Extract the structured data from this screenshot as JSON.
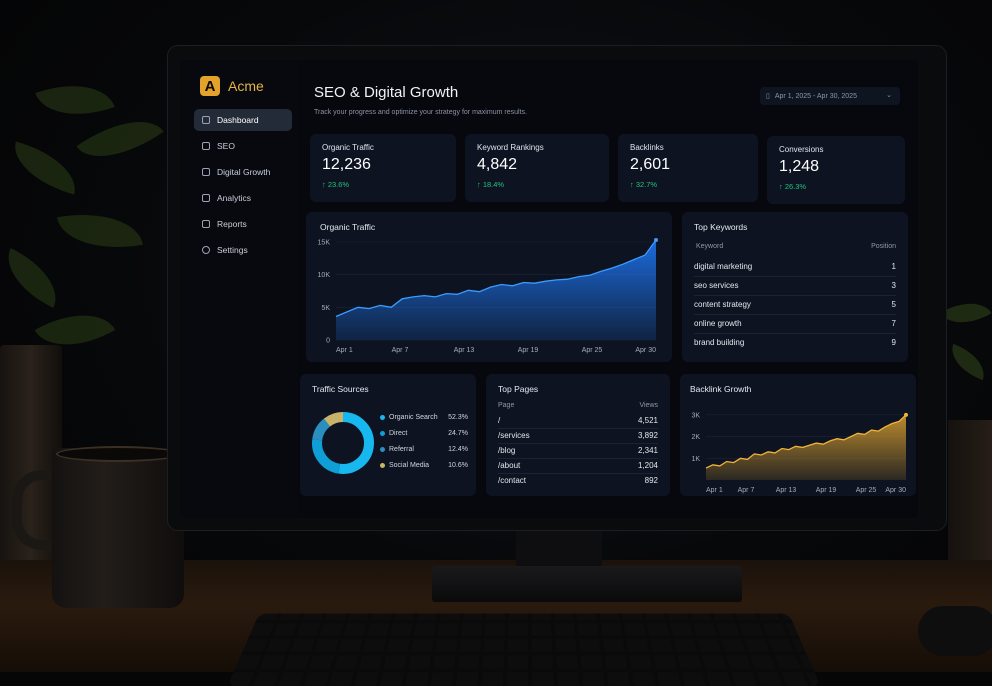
{
  "app": {
    "name": "Acme",
    "logo_letter": "A",
    "brand_color": "#e3a229"
  },
  "sidebar": {
    "items": [
      {
        "label": "Dashboard",
        "icon": "dashboard-icon",
        "active": true
      },
      {
        "label": "SEO",
        "icon": "seo-icon",
        "active": false
      },
      {
        "label": "Digital Growth",
        "icon": "growth-icon",
        "active": false
      },
      {
        "label": "Analytics",
        "icon": "analytics-icon",
        "active": false
      },
      {
        "label": "Reports",
        "icon": "reports-icon",
        "active": false
      },
      {
        "label": "Settings",
        "icon": "settings-icon",
        "active": false
      }
    ]
  },
  "header": {
    "title": "SEO & Digital Growth",
    "subtitle": "Track your progress and optimize your strategy for maximum results.",
    "date_range": "Apr 1, 2025 - Apr 30, 2025"
  },
  "kpis": [
    {
      "label": "Organic Traffic",
      "value": "12,236",
      "delta": "↑ 23.6%"
    },
    {
      "label": "Keyword Rankings",
      "value": "4,842",
      "delta": "↑ 18.4%"
    },
    {
      "label": "Backlinks",
      "value": "2,601",
      "delta": "↑ 32.7%"
    },
    {
      "label": "Conversions",
      "value": "1,248",
      "delta": "↑ 26.3%"
    }
  ],
  "top_keywords": {
    "title": "Top Keywords",
    "col_keyword": "Keyword",
    "col_position": "Position",
    "rows": [
      {
        "keyword": "digital marketing",
        "position": "1"
      },
      {
        "keyword": "seo services",
        "position": "3"
      },
      {
        "keyword": "content strategy",
        "position": "5"
      },
      {
        "keyword": "online growth",
        "position": "7"
      },
      {
        "keyword": "brand building",
        "position": "9"
      }
    ]
  },
  "top_pages": {
    "title": "Top Pages",
    "col_page": "Page",
    "col_views": "Views",
    "rows": [
      {
        "page": "/",
        "views": "4,521"
      },
      {
        "page": "/services",
        "views": "3,892"
      },
      {
        "page": "/blog",
        "views": "2,341"
      },
      {
        "page": "/about",
        "views": "1,204"
      },
      {
        "page": "/contact",
        "views": "892"
      }
    ]
  },
  "colors": {
    "traffic": "#1f7bff",
    "backlinks": "#d9a030",
    "positive": "#25c27c"
  },
  "chart_data": [
    {
      "type": "area",
      "title": "Organic Traffic",
      "x_ticks": [
        "Apr 1",
        "Apr 7",
        "Apr 13",
        "Apr 19",
        "Apr 25",
        "Apr 30"
      ],
      "y_ticks": [
        "0",
        "5K",
        "10K",
        "15K"
      ],
      "ylim": [
        0,
        15000
      ],
      "x": [
        1,
        2,
        3,
        4,
        5,
        6,
        7,
        8,
        9,
        10,
        11,
        12,
        13,
        14,
        15,
        16,
        17,
        18,
        19,
        20,
        21,
        22,
        23,
        24,
        25,
        26,
        27,
        28,
        29,
        30
      ],
      "values": [
        3600,
        4300,
        5000,
        4800,
        5300,
        5000,
        6300,
        6600,
        6800,
        6600,
        7100,
        7000,
        7600,
        7400,
        8100,
        8500,
        8300,
        8800,
        8700,
        9000,
        9200,
        9300,
        9700,
        9900,
        10500,
        11000,
        11600,
        12300,
        13000,
        15300
      ],
      "color": "#1f7bff"
    },
    {
      "type": "pie",
      "title": "Traffic Sources",
      "categories": [
        "Organic Search",
        "Direct",
        "Referral",
        "Social Media"
      ],
      "values": [
        52.3,
        24.7,
        12.4,
        10.6
      ],
      "labels": [
        "52.3%",
        "24.7%",
        "12.4%",
        "10.6%"
      ],
      "colors": [
        "#16b8ef",
        "#0f9fd6",
        "#2a8fbf",
        "#c8b36a"
      ]
    },
    {
      "type": "area",
      "title": "Backlink Growth",
      "x_ticks": [
        "Apr 1",
        "Apr 7",
        "Apr 13",
        "Apr 19",
        "Apr 25",
        "Apr 30"
      ],
      "y_ticks": [
        "1K",
        "2K",
        "3K"
      ],
      "ylim": [
        0,
        3500
      ],
      "x": [
        1,
        2,
        3,
        4,
        5,
        6,
        7,
        8,
        9,
        10,
        11,
        12,
        13,
        14,
        15,
        16,
        17,
        18,
        19,
        20,
        21,
        22,
        23,
        24,
        25,
        26,
        27,
        28,
        29,
        30
      ],
      "values": [
        550,
        700,
        650,
        850,
        800,
        1000,
        950,
        1200,
        1150,
        1300,
        1250,
        1450,
        1400,
        1550,
        1500,
        1600,
        1700,
        1650,
        1800,
        1900,
        1850,
        2000,
        2150,
        2100,
        2300,
        2250,
        2450,
        2600,
        2700,
        3000
      ],
      "color": "#d9a030"
    }
  ]
}
